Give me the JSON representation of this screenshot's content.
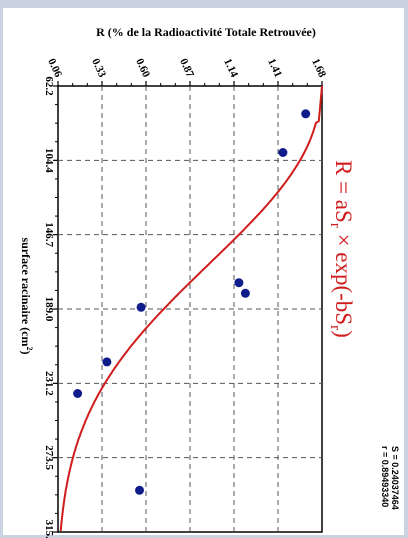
{
  "chart_data": {
    "type": "scatter",
    "title": "",
    "r_axis_label": "R (% de la Radioactivité Totale Retrouvée)",
    "s_axis_label_main": "surface racinaire (cm",
    "s_axis_label_sup": "2",
    "s_axis_label_end": ")",
    "r_ticks": [
      "0.06",
      "0.33",
      "0.60",
      "0.87",
      "1.14",
      "1.41",
      "1.68"
    ],
    "s_ticks": [
      "62.2",
      "104.4",
      "146.7",
      "189.0",
      "231.2",
      "273.5",
      "315.7"
    ],
    "r_range": [
      0.06,
      1.68
    ],
    "s_range": [
      62.2,
      315.7
    ],
    "grid": true,
    "points": [
      {
        "s": 78,
        "r": 1.58
      },
      {
        "s": 100,
        "r": 1.44
      },
      {
        "s": 174,
        "r": 1.17
      },
      {
        "s": 180,
        "r": 1.21
      },
      {
        "s": 188,
        "r": 0.57
      },
      {
        "s": 219,
        "r": 0.36
      },
      {
        "s": 237,
        "r": 0.18
      },
      {
        "s": 292,
        "r": 0.56
      }
    ],
    "fit": {
      "a": 0.138,
      "b": 0.0193,
      "color": "#d01c1c",
      "equation": {
        "prefix": "R = aS",
        "sub1": "r",
        "middle": " × exp(-bS",
        "sub2": "r",
        "suffix": ")"
      }
    },
    "stats": {
      "s_line": "S = 0.24037464",
      "r_line": "r = 0.89493340"
    },
    "point_color": "#0f1c8c"
  }
}
